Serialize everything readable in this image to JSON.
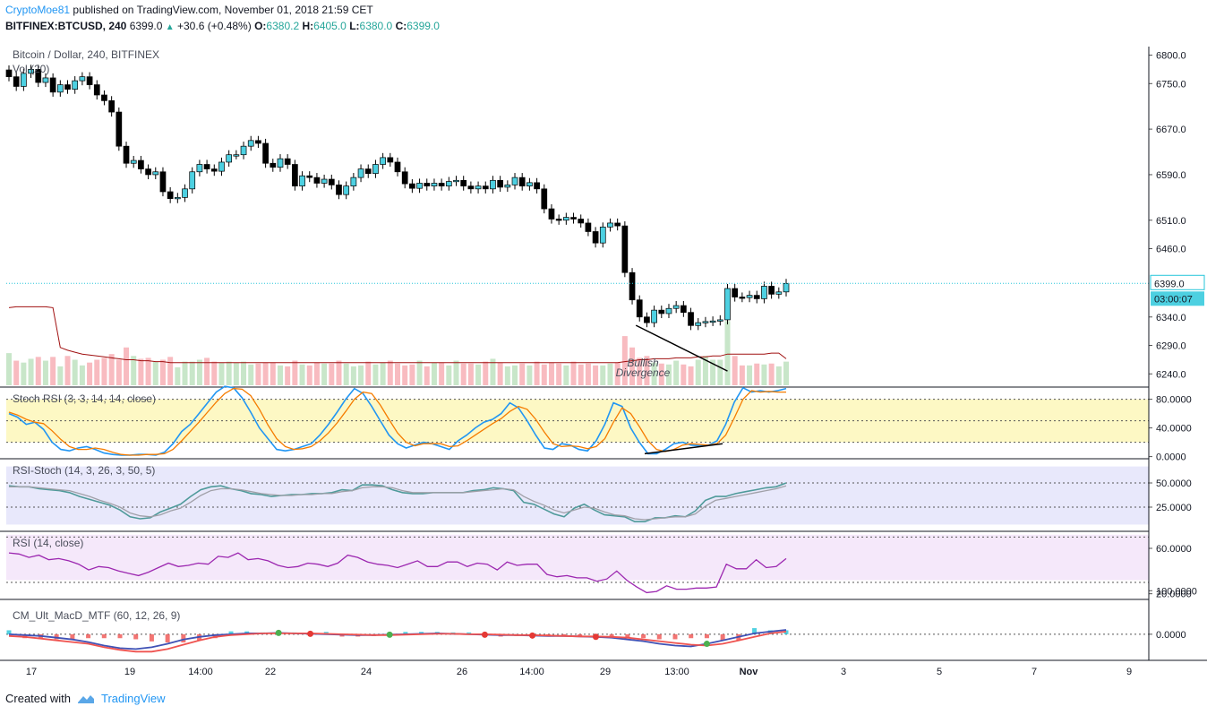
{
  "header": {
    "author": "CryptoMoe81",
    "published": "published on TradingView.com, November 01, 2018 21:59 CET",
    "symbol": "BITFINEX:BTCUSD, 240",
    "last": "6399.0",
    "change": "+30.6 (+0.48%)",
    "o_label": "O:",
    "o": "6380.2",
    "h_label": "H:",
    "h": "6405.0",
    "l_label": "L:",
    "l": "6380.0",
    "c_label": "C:",
    "c": "6399.0"
  },
  "footer": {
    "created_with": "Created with",
    "brand": "TradingView"
  },
  "colors": {
    "up": "#4dd0e1",
    "down": "#000000",
    "vol_up": "#c8e6c9",
    "vol_down": "#f8bbc0",
    "accent": "#2196f3"
  },
  "chart_data": [
    {
      "type": "candlestick",
      "title": "Bitcoin / Dollar, 240, BITFINEX",
      "sublabel": "Vol (20)",
      "y_ticks": [
        "6800.0",
        "6750.0",
        "6670.0",
        "6590.0",
        "6510.0",
        "6460.0",
        "6340.0",
        "6290.0",
        "6240.0"
      ],
      "y_tick_values": [
        6800,
        6750,
        6670,
        6590,
        6510,
        6460,
        6340,
        6290,
        6240
      ],
      "last_price": "6399.0",
      "countdown": "03:00:07",
      "annotation": "Bullish Divergence",
      "x_labels": [
        "17",
        "19",
        "14:00",
        "22",
        "24",
        "26",
        "14:00",
        "29",
        "13:00",
        "Nov",
        "3",
        "5",
        "7",
        "9"
      ],
      "closes": [
        6762,
        6745,
        6768,
        6775,
        6752,
        6760,
        6735,
        6748,
        6740,
        6755,
        6762,
        6748,
        6730,
        6720,
        6700,
        6640,
        6610,
        6615,
        6600,
        6590,
        6595,
        6560,
        6548,
        6550,
        6565,
        6595,
        6608,
        6600,
        6596,
        6612,
        6625,
        6625,
        6640,
        6650,
        6645,
        6610,
        6603,
        6618,
        6608,
        6570,
        6588,
        6585,
        6575,
        6582,
        6572,
        6555,
        6570,
        6585,
        6600,
        6592,
        6608,
        6620,
        6612,
        6595,
        6574,
        6566,
        6575,
        6570,
        6575,
        6570,
        6578,
        6580,
        6570,
        6565,
        6570,
        6565,
        6580,
        6568,
        6572,
        6585,
        6570,
        6576,
        6565,
        6530,
        6512,
        6510,
        6515,
        6512,
        6505,
        6490,
        6470,
        6498,
        6505,
        6500,
        6418,
        6370,
        6340,
        6330,
        6352,
        6346,
        6355,
        6360,
        6348,
        6325,
        6330,
        6332,
        6333,
        6335,
        6390,
        6375,
        6374,
        6378,
        6372,
        6394,
        6380,
        6384,
        6399
      ],
      "volume": [
        34,
        26,
        24,
        28,
        30,
        26,
        30,
        20,
        31,
        27,
        21,
        24,
        27,
        29,
        33,
        27,
        40,
        31,
        28,
        29,
        25,
        27,
        30,
        19,
        25,
        25,
        27,
        29,
        25,
        24,
        25,
        24,
        25,
        22,
        23,
        24,
        24,
        21,
        20,
        26,
        22,
        21,
        24,
        23,
        23,
        26,
        23,
        20,
        21,
        25,
        22,
        24,
        26,
        23,
        21,
        22,
        26,
        20,
        24,
        24,
        21,
        26,
        23,
        23,
        22,
        25,
        28,
        24,
        20,
        21,
        23,
        21,
        25,
        22,
        24,
        23,
        21,
        25,
        22,
        23,
        21,
        21,
        23,
        24,
        52,
        40,
        29,
        31,
        24,
        23,
        22,
        26,
        22,
        20,
        27,
        31,
        27,
        27,
        68,
        31,
        21,
        21,
        23,
        22,
        23,
        20,
        25
      ],
      "vol_ma": [
        82,
        83,
        83,
        83,
        83,
        83,
        82,
        40,
        37,
        35,
        33,
        32,
        31,
        30,
        29,
        28,
        27,
        27,
        26,
        26,
        25,
        25,
        24,
        24,
        24,
        24,
        24,
        24,
        24,
        24,
        24,
        24,
        24,
        24,
        24,
        24,
        24,
        24,
        24,
        24,
        24,
        24,
        24,
        24,
        24,
        24,
        24,
        24,
        24,
        24,
        24,
        24,
        24,
        24,
        24,
        24,
        24,
        24,
        24,
        24,
        24,
        24,
        24,
        24,
        24,
        24,
        24,
        24,
        24,
        24,
        24,
        24,
        24,
        24,
        24,
        24,
        24,
        24,
        24,
        24,
        24,
        24,
        24,
        24,
        25,
        26,
        27,
        27,
        28,
        28,
        28,
        29,
        29,
        29,
        30,
        30,
        31,
        31,
        33,
        33,
        33,
        33,
        33,
        33,
        34,
        34,
        28
      ]
    },
    {
      "type": "line",
      "title": "Stoch RSI (3, 3, 14, 14, close)",
      "y_ticks": [
        "80.0000",
        "40.0000",
        "0.0000"
      ],
      "bands": [
        80,
        50,
        20
      ],
      "series": [
        {
          "values": [
            60,
            55,
            45,
            48,
            38,
            20,
            10,
            8,
            12,
            14,
            10,
            5,
            3,
            2,
            2,
            3,
            3,
            2,
            6,
            18,
            35,
            45,
            60,
            75,
            90,
            98,
            96,
            82,
            62,
            40,
            25,
            10,
            8,
            10,
            14,
            18,
            30,
            45,
            62,
            80,
            95,
            88,
            70,
            50,
            30,
            18,
            12,
            16,
            20,
            18,
            14,
            10,
            22,
            30,
            40,
            48,
            52,
            60,
            75,
            68,
            50,
            30,
            12,
            10,
            18,
            16,
            10,
            8,
            22,
            45,
            75,
            70,
            40,
            20,
            4,
            4,
            10,
            18,
            20,
            16,
            15,
            16,
            22,
            45,
            76,
            96,
            90,
            92,
            90,
            92,
            95
          ]
        },
        {
          "values": [
            62,
            58,
            52,
            48,
            46,
            36,
            24,
            14,
            10,
            10,
            12,
            10,
            6,
            3,
            2,
            2,
            3,
            3,
            4,
            10,
            22,
            35,
            48,
            62,
            76,
            88,
            95,
            94,
            85,
            66,
            44,
            25,
            14,
            10,
            11,
            14,
            22,
            33,
            47,
            63,
            80,
            90,
            88,
            72,
            52,
            33,
            20,
            15,
            18,
            18,
            18,
            14,
            15,
            22,
            30,
            38,
            46,
            53,
            63,
            70,
            66,
            52,
            34,
            18,
            14,
            15,
            14,
            11,
            14,
            25,
            48,
            68,
            60,
            42,
            22,
            10,
            7,
            10,
            16,
            18,
            17,
            16,
            18,
            30,
            54,
            80,
            92,
            90,
            91,
            90,
            90
          ]
        }
      ]
    },
    {
      "type": "line",
      "title": "RSI-Stoch (14, 3, 26, 3, 50, 5)",
      "y_ticks": [
        "50.0000",
        "25.0000"
      ],
      "bands": [
        50,
        25
      ],
      "series": [
        {
          "values": [
            47,
            46,
            46,
            44,
            43,
            42,
            40,
            36,
            33,
            30,
            27,
            22,
            15,
            13,
            14,
            20,
            24,
            28,
            36,
            43,
            46,
            47,
            44,
            42,
            39,
            38,
            36,
            37,
            38,
            38,
            39,
            39,
            40,
            43,
            42,
            48,
            48,
            47,
            43,
            40,
            39,
            39,
            40,
            40,
            40,
            40,
            42,
            43,
            45,
            44,
            42,
            30,
            28,
            23,
            18,
            15,
            24,
            28,
            22,
            17,
            16,
            15,
            10,
            10,
            14,
            14,
            16,
            15,
            21,
            32,
            36,
            36,
            39,
            41,
            43,
            45,
            46,
            50
          ]
        },
        {
          "values": [
            46,
            46,
            46,
            45,
            44,
            43,
            42,
            39,
            36,
            32,
            29,
            25,
            19,
            16,
            15,
            17,
            21,
            24,
            30,
            37,
            42,
            44,
            44,
            43,
            41,
            39,
            38,
            37,
            37,
            38,
            38,
            39,
            39,
            41,
            42,
            45,
            46,
            46,
            45,
            42,
            40,
            40,
            40,
            40,
            40,
            40,
            41,
            42,
            43,
            44,
            43,
            36,
            31,
            27,
            22,
            19,
            22,
            25,
            24,
            20,
            17,
            16,
            13,
            12,
            13,
            14,
            15,
            15,
            18,
            26,
            32,
            34,
            36,
            38,
            40,
            42,
            44,
            47
          ]
        }
      ]
    },
    {
      "type": "line",
      "title": "RSI (14, close)",
      "y_ticks": [
        "60.0000",
        "20.0000"
      ],
      "bands": [
        70,
        30
      ],
      "series": [
        {
          "values": [
            56,
            55,
            52,
            54,
            50,
            51,
            49,
            46,
            41,
            44,
            43,
            40,
            38,
            36,
            39,
            43,
            47,
            44,
            45,
            47,
            46,
            53,
            52,
            56,
            50,
            51,
            49,
            45,
            43,
            44,
            47,
            46,
            44,
            47,
            54,
            52,
            48,
            46,
            45,
            43,
            46,
            49,
            44,
            44,
            48,
            48,
            44,
            47,
            46,
            41,
            48,
            45,
            46,
            46,
            37,
            35,
            36,
            34,
            34,
            31,
            33,
            40,
            32,
            26,
            21,
            22,
            27,
            24,
            24,
            25,
            25,
            26,
            46,
            42,
            42,
            50,
            43,
            44,
            51
          ]
        }
      ]
    },
    {
      "type": "bar",
      "title": "CM_Ult_MacD_MTF (60, 12, 26, 9)",
      "y_ticks": [
        "100.0000",
        "0.0000"
      ],
      "series": [
        {
          "values": [
            0,
            -2,
            -4,
            -8,
            -12,
            -18,
            -26,
            -32,
            -34,
            -30,
            -22,
            -12,
            -6,
            -2,
            0,
            2,
            2,
            3,
            2,
            1,
            0,
            -1,
            -2,
            -2,
            -1,
            0,
            1,
            2,
            1,
            0,
            -1,
            -2,
            -2,
            -3,
            -4,
            -4,
            -5,
            -6,
            -8,
            -12,
            -16,
            -22,
            -26,
            -28,
            -22,
            -14,
            -6,
            2,
            6,
            10
          ]
        },
        {
          "values": [
            -4,
            -6,
            -10,
            -14,
            -18,
            -22,
            -30,
            -36,
            -40,
            -40,
            -34,
            -24,
            -14,
            -6,
            -2,
            0,
            2,
            2,
            2,
            2,
            1,
            0,
            -1,
            -2,
            -2,
            -1,
            0,
            1,
            1,
            0,
            0,
            -1,
            -2,
            -2,
            -3,
            -4,
            -5,
            -5,
            -6,
            -8,
            -12,
            -16,
            -20,
            -24,
            -26,
            -22,
            -14,
            -6,
            2,
            6
          ]
        }
      ]
    }
  ]
}
